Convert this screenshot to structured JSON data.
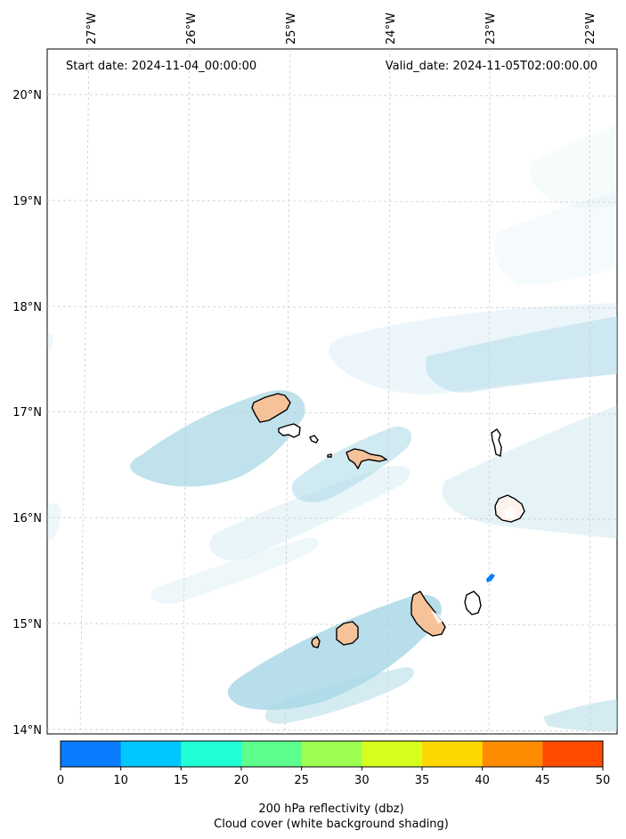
{
  "header": {
    "start_date": "Start date: 2024-11-04_00:00:00",
    "valid_date": "Valid_date: 2024-11-05T02:00:00.00"
  },
  "map": {
    "lon_labels": [
      "27°W",
      "26°W",
      "25°W",
      "24°W",
      "23°W",
      "22°W"
    ],
    "lat_labels": [
      "20°N",
      "19°N",
      "18°N",
      "17°N",
      "16°N",
      "15°N",
      "14°N"
    ],
    "gridlines": "dashed light grey"
  },
  "colorbar": {
    "label_line1": "200 hPa reflectivity (dbz)",
    "label_line2": "Cloud cover (white background shading)",
    "ticks": [
      "0",
      "10",
      "15",
      "20",
      "25",
      "30",
      "35",
      "40",
      "45",
      "50"
    ],
    "colors": [
      "#0a7dff",
      "#00c8ff",
      "#1effd6",
      "#5cff8e",
      "#9cff52",
      "#d7ff1e",
      "#ffd700",
      "#ff8c00",
      "#ff4c00"
    ]
  },
  "styles": {
    "land_fill": "#f5c29a",
    "coast_stroke": "#000000",
    "cloud_fill": "#aad8e6"
  }
}
